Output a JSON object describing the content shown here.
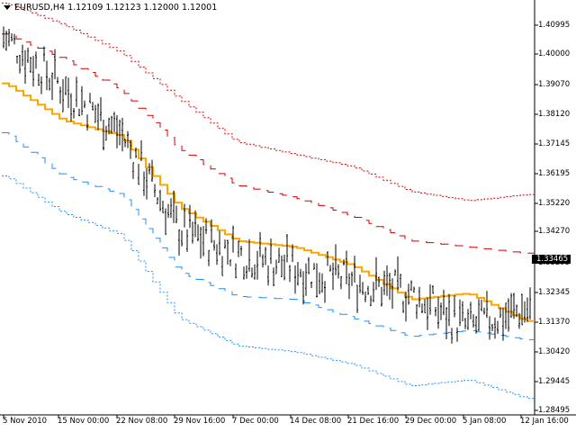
{
  "chart_header": {
    "symbol_timeframe": "EURUSD,H4",
    "open": "1.12109",
    "high": "1.12123",
    "low": "1.12000",
    "close": "1.12001"
  },
  "colors": {
    "background": "#ffffff",
    "candles": "#000000",
    "ma_line": "#ffa500",
    "upper_bands": "#d40000",
    "lower_bands": "#1e90ff",
    "current_price_bg": "#000000"
  },
  "price_axis": {
    "labels": [
      "1.40995",
      "1.40000",
      "1.39070",
      "1.38120",
      "1.37145",
      "1.36195",
      "1.35220",
      "1.34270",
      "1.33295",
      "1.32345",
      "1.31370",
      "1.30420",
      "1.29445",
      "1.28495"
    ],
    "current_price": "1.33465"
  },
  "time_axis": {
    "labels": [
      "5 Nov 2010",
      "15 Nov 00:00",
      "22 Nov 08:00",
      "29 Nov 16:00",
      "7 Dec 00:00",
      "14 Dec 08:00",
      "21 Dec 16:00",
      "29 Dec 00:00",
      "5 Jan 08:00",
      "12 Jan 16:00"
    ]
  },
  "chart_data": {
    "type": "line",
    "ylim": [
      1.2845,
      1.4145
    ],
    "x": [
      "5 Nov 2010",
      "15 Nov 00:00",
      "22 Nov 08:00",
      "29 Nov 16:00",
      "7 Dec 00:00",
      "14 Dec 08:00",
      "21 Dec 16:00",
      "29 Dec 00:00",
      "5 Jan 08:00",
      "12 Jan 16:00"
    ],
    "series": [
      {
        "values": [
          1.406,
          1.39,
          1.375,
          1.344,
          1.336,
          1.3315,
          1.327,
          1.323,
          1.312,
          1.318
        ]
      },
      {
        "values": [
          1.392,
          1.377,
          1.368,
          1.327,
          1.326,
          1.337,
          1.328,
          1.324,
          1.325,
          1.314
        ]
      },
      {
        "values": [
          1.391,
          1.379,
          1.374,
          1.351,
          1.34,
          1.338,
          1.332,
          1.321,
          1.323,
          1.314
        ]
      },
      {
        "values": [
          1.407,
          1.399,
          1.389,
          1.37,
          1.358,
          1.354,
          1.348,
          1.34,
          1.338,
          1.336
        ]
      },
      {
        "values": [
          1.417,
          1.41,
          1.401,
          1.386,
          1.372,
          1.368,
          1.364,
          1.356,
          1.353,
          1.355
        ]
      },
      {
        "values": [
          1.375,
          1.361,
          1.355,
          1.33,
          1.322,
          1.321,
          1.315,
          1.309,
          1.311,
          1.308
        ]
      },
      {
        "values": [
          1.361,
          1.349,
          1.342,
          1.315,
          1.306,
          1.304,
          1.3,
          1.293,
          1.295,
          1.289
        ]
      }
    ]
  }
}
